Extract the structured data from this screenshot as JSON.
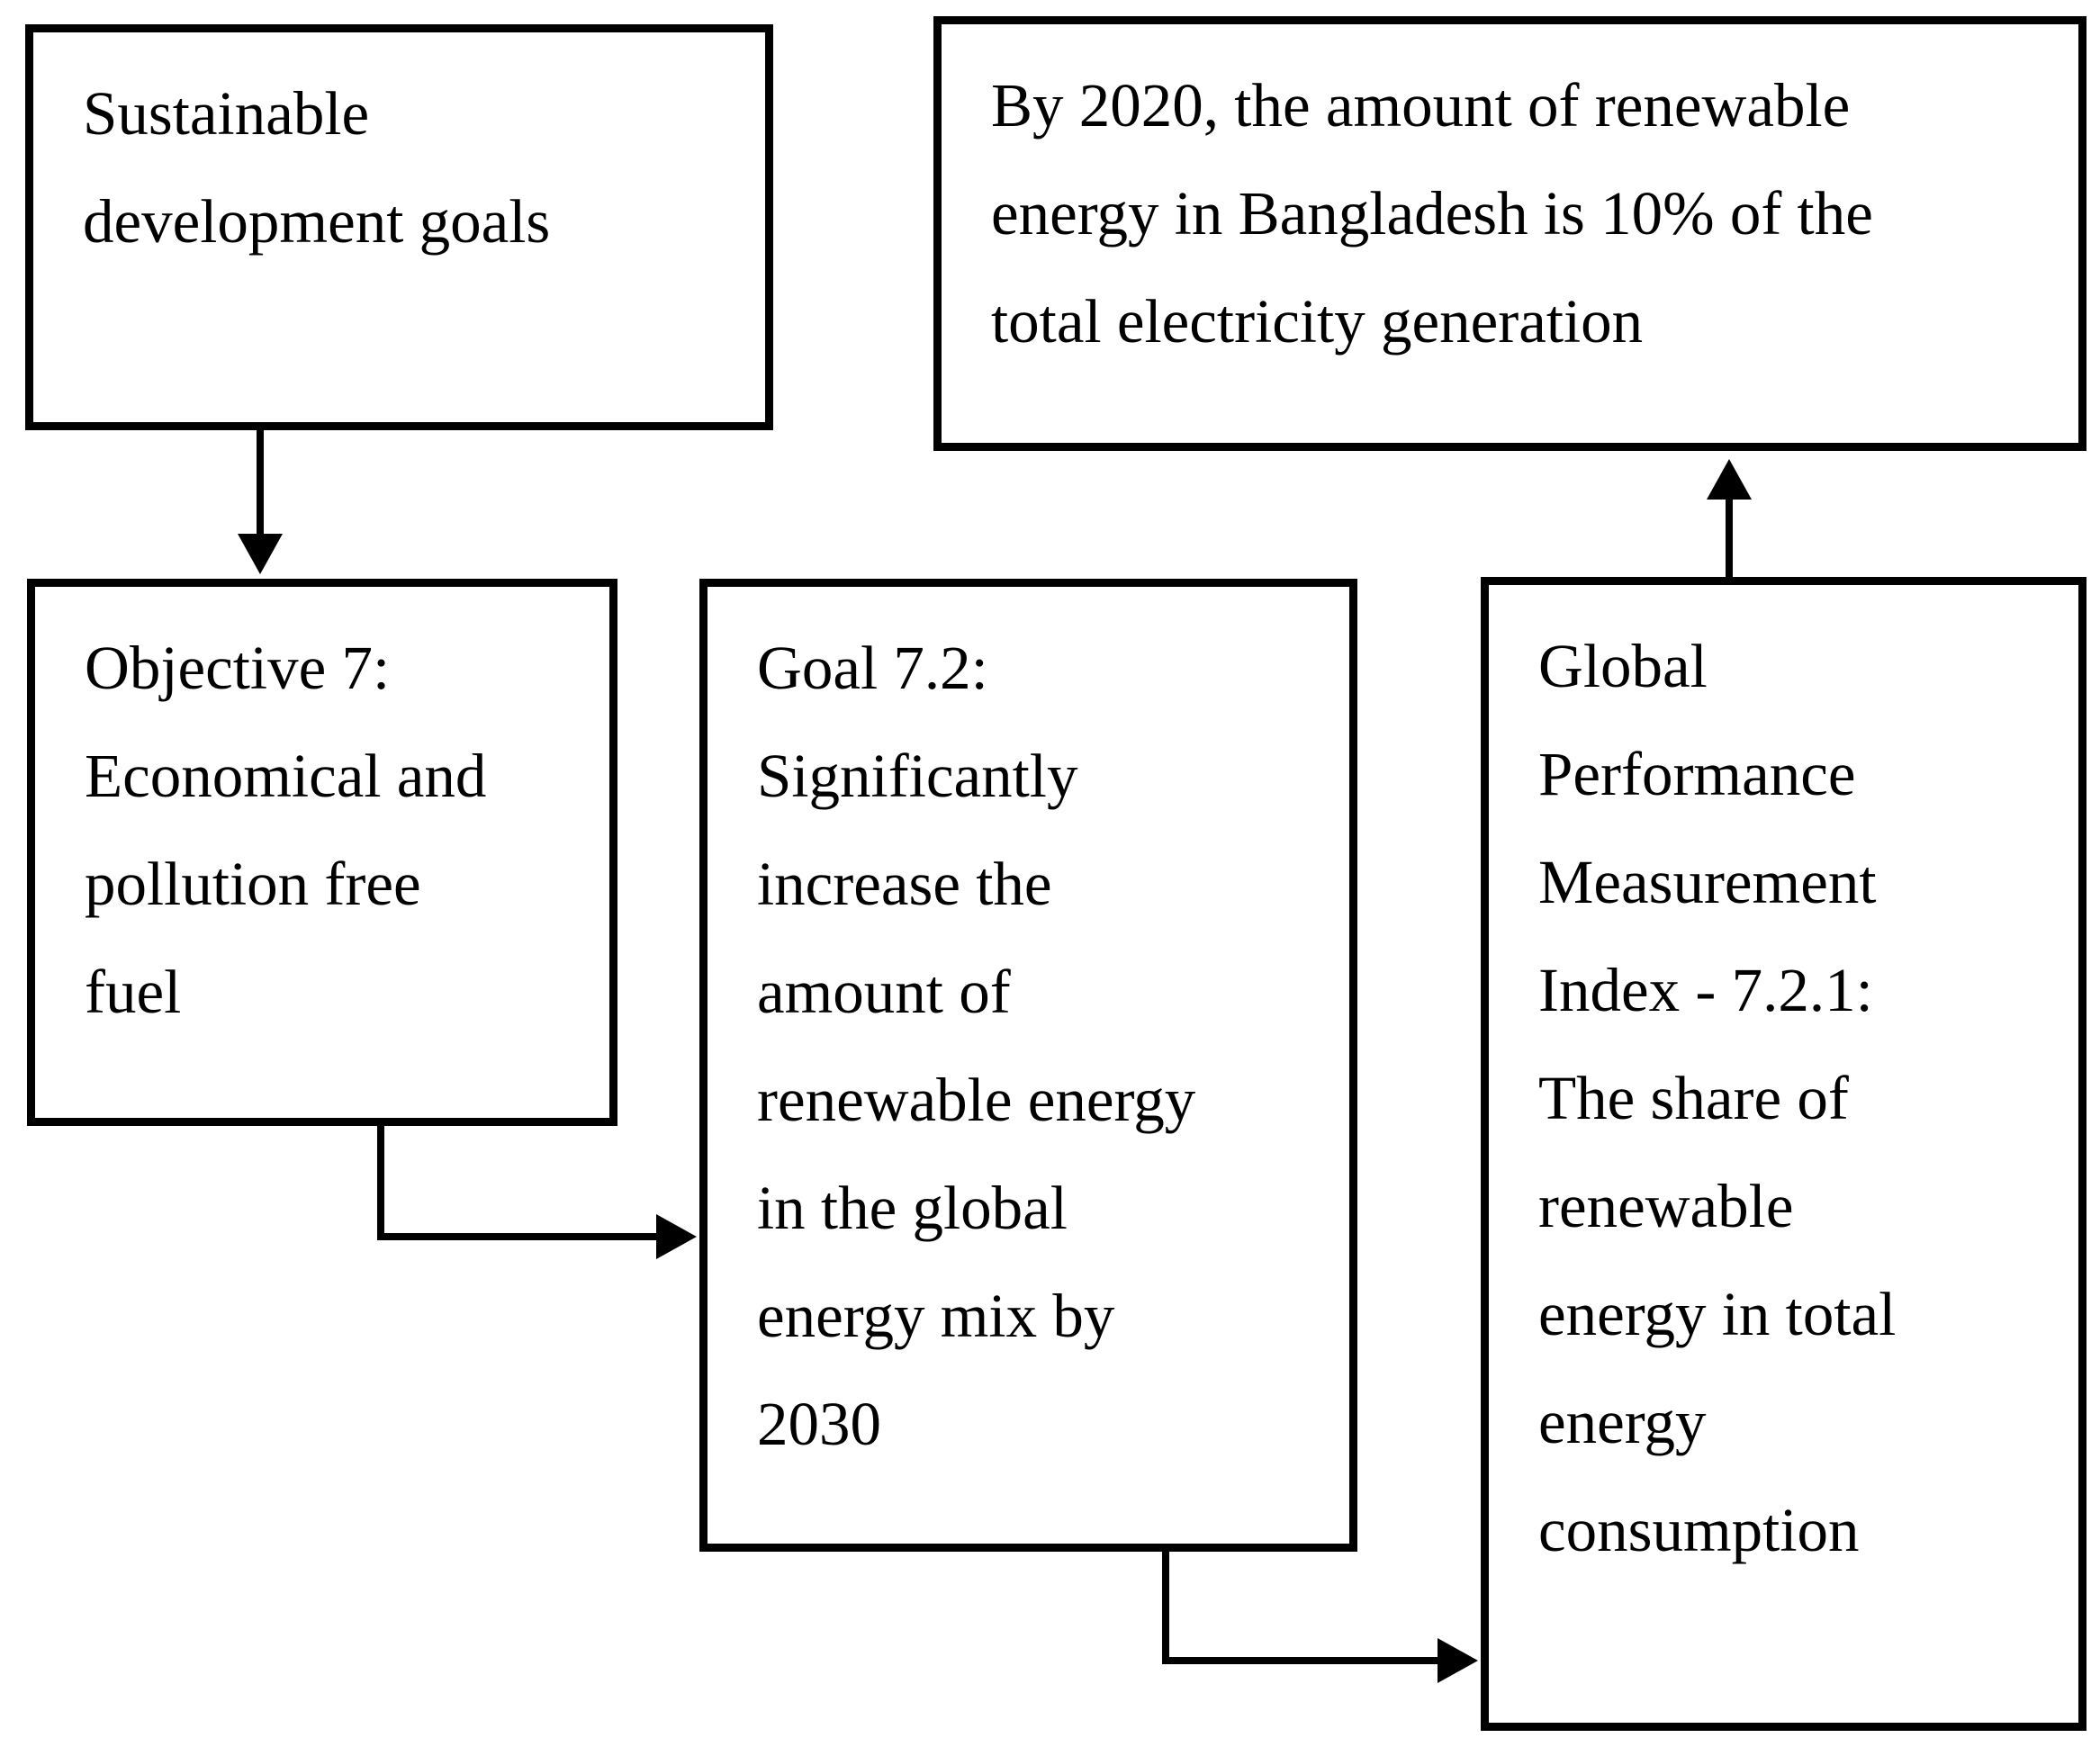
{
  "diagram": {
    "background_color": "#ffffff",
    "line_color": "#000000",
    "boxes": {
      "sdg": {
        "lines": [
          "Sustainable",
          "development goals"
        ]
      },
      "target2020": {
        "lines": [
          "By 2020, the amount of renewable",
          "energy in Bangladesh is 10% of the",
          "total electricity generation"
        ]
      },
      "objective7": {
        "lines": [
          "Objective 7:",
          "Economical and",
          "pollution free",
          "fuel"
        ]
      },
      "goal72": {
        "lines": [
          "Goal 7.2:",
          "Significantly",
          "increase the",
          "amount of",
          "renewable energy",
          "in the global",
          "energy mix by",
          "2030"
        ]
      },
      "gpmi721": {
        "lines": [
          "Global",
          "Performance",
          "Measurement",
          "Index - 7.2.1:",
          "The share of",
          "renewable",
          "energy in total",
          "energy",
          "consumption"
        ]
      }
    },
    "edges": [
      {
        "from": "sdg",
        "to": "objective7",
        "shape": "straight-down-arrow"
      },
      {
        "from": "objective7",
        "to": "goal72",
        "shape": "elbow-down-right-arrow"
      },
      {
        "from": "goal72",
        "to": "gpmi721",
        "shape": "elbow-down-right-arrow"
      },
      {
        "from": "gpmi721",
        "to": "target2020",
        "shape": "straight-up-arrow"
      }
    ]
  }
}
